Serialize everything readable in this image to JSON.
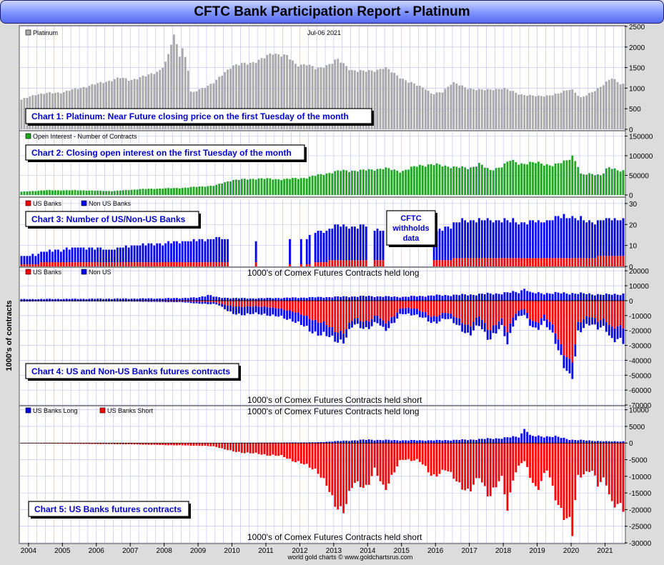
{
  "report": {
    "title": "CFTC Bank Participation Report - Platinum",
    "y_axis_title": "1000's of contracts",
    "footer": "world gold charts © www.goldchartsrus.com",
    "x_labels": [
      "2004",
      "2005",
      "2006",
      "2007",
      "2008",
      "2009",
      "2010",
      "2011",
      "2012",
      "2013",
      "2014",
      "2015",
      "2016",
      "2017",
      "2018",
      "2019",
      "2020",
      "2021"
    ],
    "colors": {
      "grey": "#a9a9a9",
      "green": "#1fa51f",
      "red": "#ff0000",
      "blue": "#0000ee",
      "grid": "#b9b9f3",
      "box_text": "#0000cc"
    }
  },
  "chart_data": [
    {
      "id": "chart1",
      "type": "bar",
      "legend": [
        "Platinum"
      ],
      "date": "Jul-06  2021",
      "box_label": "Chart 1: Platinum: Near Future closing price on the first Tuesday of the month",
      "ylim": [
        0,
        2500
      ],
      "yticks": [
        "2500",
        "2000",
        "1500",
        "1000",
        "500",
        "0"
      ],
      "anchors": [
        [
          2003.75,
          700
        ],
        [
          2004.2,
          850
        ],
        [
          2005.0,
          900
        ],
        [
          2006.0,
          1100
        ],
        [
          2006.7,
          1250
        ],
        [
          2007.0,
          1200
        ],
        [
          2007.5,
          1300
        ],
        [
          2007.9,
          1450
        ],
        [
          2008.1,
          1700
        ],
        [
          2008.2,
          2050
        ],
        [
          2008.3,
          2300
        ],
        [
          2008.45,
          1800
        ],
        [
          2008.55,
          2000
        ],
        [
          2008.7,
          1500
        ],
        [
          2008.8,
          850
        ],
        [
          2009.0,
          950
        ],
        [
          2009.5,
          1150
        ],
        [
          2010.0,
          1550
        ],
        [
          2010.5,
          1600
        ],
        [
          2011.0,
          1750
        ],
        [
          2011.2,
          1850
        ],
        [
          2011.6,
          1800
        ],
        [
          2011.9,
          1550
        ],
        [
          2012.2,
          1600
        ],
        [
          2012.5,
          1450
        ],
        [
          2012.9,
          1600
        ],
        [
          2013.1,
          1700
        ],
        [
          2013.5,
          1450
        ],
        [
          2013.9,
          1400
        ],
        [
          2014.3,
          1450
        ],
        [
          2014.5,
          1500
        ],
        [
          2014.9,
          1300
        ],
        [
          2015.2,
          1150
        ],
        [
          2015.7,
          1000
        ],
        [
          2015.9,
          850
        ],
        [
          2016.2,
          900
        ],
        [
          2016.5,
          1150
        ],
        [
          2016.9,
          1000
        ],
        [
          2017.5,
          950
        ],
        [
          2018.0,
          1000
        ],
        [
          2018.5,
          850
        ],
        [
          2019.0,
          800
        ],
        [
          2019.6,
          850
        ],
        [
          2020.0,
          1000
        ],
        [
          2020.3,
          750
        ],
        [
          2020.6,
          900
        ],
        [
          2021.0,
          1100
        ],
        [
          2021.2,
          1250
        ],
        [
          2021.4,
          1150
        ],
        [
          2021.5,
          1100
        ]
      ]
    },
    {
      "id": "chart2",
      "type": "bar",
      "legend": [
        "Open Interest - Number of Contracts"
      ],
      "box_label": "Chart 2: Closing open interest on the first Tuesday of the month",
      "ylim": [
        0,
        160000
      ],
      "yticks": [
        "150000",
        "100000",
        "50000",
        "0"
      ],
      "anchors": [
        [
          2003.75,
          8000
        ],
        [
          2004.5,
          12000
        ],
        [
          2005.5,
          12000
        ],
        [
          2006.5,
          10000
        ],
        [
          2007.3,
          15000
        ],
        [
          2008.5,
          18000
        ],
        [
          2009.5,
          24000
        ],
        [
          2010.0,
          38000
        ],
        [
          2010.8,
          42000
        ],
        [
          2011.5,
          40000
        ],
        [
          2012.2,
          44000
        ],
        [
          2012.5,
          50000
        ],
        [
          2013.2,
          62000
        ],
        [
          2013.8,
          62000
        ],
        [
          2014.5,
          68000
        ],
        [
          2015.0,
          60000
        ],
        [
          2015.5,
          75000
        ],
        [
          2015.9,
          78000
        ],
        [
          2016.5,
          72000
        ],
        [
          2017.0,
          68000
        ],
        [
          2017.3,
          80000
        ],
        [
          2017.6,
          62000
        ],
        [
          2018.0,
          75000
        ],
        [
          2018.2,
          88000
        ],
        [
          2018.5,
          80000
        ],
        [
          2019.0,
          82000
        ],
        [
          2019.5,
          75000
        ],
        [
          2019.8,
          85000
        ],
        [
          2020.05,
          100000
        ],
        [
          2020.2,
          75000
        ],
        [
          2020.3,
          50000
        ],
        [
          2020.6,
          55000
        ],
        [
          2020.9,
          50000
        ],
        [
          2021.1,
          70000
        ],
        [
          2021.5,
          62000
        ]
      ]
    },
    {
      "id": "chart3",
      "type": "bar",
      "legend": [
        "US Banks",
        "Non US Banks"
      ],
      "box_label": "Chart 3: Number of US/Non-US Banks",
      "annotation": "CFTC withholds data",
      "ylim": [
        0,
        32
      ],
      "yticks": [
        "30",
        "20",
        "10",
        "0"
      ],
      "us_anchors": [
        [
          2003.75,
          1
        ],
        [
          2005.0,
          2
        ],
        [
          2007.0,
          2
        ],
        [
          2009.0,
          2
        ],
        [
          2009.9,
          2
        ],
        [
          2012.2,
          1
        ],
        [
          2013.0,
          3
        ],
        [
          2015.0,
          3
        ],
        [
          2016.0,
          3
        ],
        [
          2017.0,
          4
        ],
        [
          2019.0,
          4
        ],
        [
          2020.0,
          4
        ],
        [
          2021.5,
          5
        ]
      ],
      "nonus_anchors": [
        [
          2003.75,
          4
        ],
        [
          2004.5,
          5
        ],
        [
          2005.5,
          7
        ],
        [
          2006.5,
          6
        ],
        [
          2007.0,
          8
        ],
        [
          2008.0,
          9
        ],
        [
          2009.5,
          11
        ],
        [
          2009.9,
          11
        ],
        [
          2012.0,
          12
        ],
        [
          2012.5,
          14
        ],
        [
          2013.0,
          16
        ],
        [
          2014.0,
          16
        ],
        [
          2014.5,
          14
        ],
        [
          2015.9,
          12
        ],
        [
          2016.3,
          16
        ],
        [
          2017.0,
          18
        ],
        [
          2018.0,
          18
        ],
        [
          2018.5,
          17
        ],
        [
          2019.0,
          17
        ],
        [
          2019.5,
          19
        ],
        [
          2020.0,
          20
        ],
        [
          2020.5,
          17
        ],
        [
          2021.0,
          17
        ],
        [
          2021.5,
          18
        ]
      ],
      "gaps": [
        [
          2009.95,
          2010.7
        ],
        [
          2010.75,
          2011.68
        ],
        [
          2011.72,
          2012.0
        ],
        [
          2012.05,
          2012.18
        ],
        [
          2012.35,
          2012.4
        ],
        [
          2014.0,
          2014.2
        ],
        [
          2014.5,
          2015.9
        ]
      ]
    },
    {
      "id": "chart4",
      "type": "bar",
      "legend": [
        "US Banks",
        "Non US"
      ],
      "label_top": "1000's of Comex Futures Contracts held long",
      "label_bottom": "1000's of Comex Futures Contracts held short",
      "box_label": "Chart 4: US and Non-US Banks futures contracts",
      "ylim": [
        -70000,
        22000
      ],
      "yticks": [
        "20000",
        "10000",
        "0",
        "-10000",
        "-20000",
        "-30000",
        "-40000",
        "-50000",
        "-60000",
        "-70000"
      ],
      "red_anchors": [
        [
          2003.75,
          -300
        ],
        [
          2007.0,
          -300
        ],
        [
          2008.5,
          -500
        ],
        [
          2009.5,
          -1000
        ],
        [
          2010.0,
          -4000
        ],
        [
          2011.0,
          -4000
        ],
        [
          2011.8,
          -7000
        ],
        [
          2012.3,
          -12000
        ],
        [
          2012.7,
          -15000
        ],
        [
          2013.0,
          -20000
        ],
        [
          2013.3,
          -21000
        ],
        [
          2013.6,
          -12000
        ],
        [
          2014.0,
          -14000
        ],
        [
          2014.3,
          -10000
        ],
        [
          2014.5,
          -15000
        ],
        [
          2014.8,
          -10000
        ],
        [
          2015.0,
          -5000
        ],
        [
          2015.4,
          -5000
        ],
        [
          2015.9,
          -11000
        ],
        [
          2016.3,
          -8000
        ],
        [
          2016.7,
          -12000
        ],
        [
          2017.0,
          -18000
        ],
        [
          2017.3,
          -10000
        ],
        [
          2017.6,
          -20000
        ],
        [
          2018.0,
          -12000
        ],
        [
          2018.1,
          -22000
        ],
        [
          2018.3,
          -10000
        ],
        [
          2018.6,
          -5000
        ],
        [
          2018.8,
          -12000
        ],
        [
          2019.0,
          -15000
        ],
        [
          2019.2,
          -10000
        ],
        [
          2019.5,
          -18000
        ],
        [
          2019.8,
          -35000
        ],
        [
          2020.0,
          -45000
        ],
        [
          2020.1,
          -35000
        ],
        [
          2020.2,
          -15000
        ],
        [
          2020.5,
          -10000
        ],
        [
          2020.8,
          -14000
        ],
        [
          2021.0,
          -12000
        ],
        [
          2021.2,
          -18000
        ],
        [
          2021.5,
          -18000
        ]
      ],
      "blue_anchors": [
        [
          2003.75,
          -300
        ],
        [
          2005.0,
          -200
        ],
        [
          2007.0,
          -300
        ],
        [
          2008.5,
          -500
        ],
        [
          2009.3,
          -1500
        ],
        [
          2009.6,
          -1000
        ],
        [
          2010.0,
          -5000
        ],
        [
          2011.0,
          -5000
        ],
        [
          2011.8,
          -6000
        ],
        [
          2012.3,
          -8000
        ],
        [
          2012.7,
          -8000
        ],
        [
          2013.0,
          -6000
        ],
        [
          2013.3,
          -6000
        ],
        [
          2013.6,
          -4000
        ],
        [
          2014.3,
          -5000
        ],
        [
          2014.8,
          -4000
        ],
        [
          2015.9,
          -4000
        ],
        [
          2016.5,
          -4000
        ],
        [
          2017.0,
          -6000
        ],
        [
          2017.6,
          -6000
        ],
        [
          2018.0,
          -5000
        ],
        [
          2018.1,
          -8000
        ],
        [
          2018.4,
          -4000
        ],
        [
          2019.0,
          -4000
        ],
        [
          2019.5,
          -6000
        ],
        [
          2019.8,
          -8000
        ],
        [
          2020.0,
          -12000
        ],
        [
          2020.2,
          -6000
        ],
        [
          2020.6,
          -5000
        ],
        [
          2021.0,
          -5000
        ],
        [
          2021.2,
          -8000
        ],
        [
          2021.5,
          -10000
        ]
      ],
      "long_anchors": [
        [
          2003.75,
          1000
        ],
        [
          2008.0,
          1500
        ],
        [
          2009.0,
          2000
        ],
        [
          2009.3,
          4000
        ],
        [
          2009.6,
          2000
        ],
        [
          2010.5,
          1500
        ],
        [
          2012.0,
          2000
        ],
        [
          2013.0,
          2500
        ],
        [
          2014.0,
          3000
        ],
        [
          2015.0,
          2500
        ],
        [
          2016.0,
          3500
        ],
        [
          2017.0,
          4000
        ],
        [
          2018.0,
          5000
        ],
        [
          2018.5,
          6000
        ],
        [
          2018.65,
          9000
        ],
        [
          2018.8,
          5000
        ],
        [
          2019.5,
          5000
        ],
        [
          2020.0,
          5000
        ],
        [
          2021.0,
          4000
        ],
        [
          2021.5,
          4500
        ]
      ]
    },
    {
      "id": "chart5",
      "type": "bar",
      "legend": [
        "US Banks Long",
        "US Banks Short"
      ],
      "label_top": "1000's of Comex Futures Contracts held long",
      "label_bottom": "1000's of Comex Futures Contracts held short",
      "box_label": "Chart 5: US Banks futures contracts",
      "ylim": [
        -30000,
        11000
      ],
      "yticks": [
        "10000",
        "5000",
        "0",
        "-5000",
        "-10000",
        "-15000",
        "-20000",
        "-25000",
        "-30000"
      ],
      "short_anchors": [
        [
          2003.75,
          -100
        ],
        [
          2005.0,
          -200
        ],
        [
          2007.0,
          -400
        ],
        [
          2008.0,
          -600
        ],
        [
          2009.0,
          -800
        ],
        [
          2009.5,
          -1000
        ],
        [
          2010.0,
          -2500
        ],
        [
          2011.0,
          -3500
        ],
        [
          2011.5,
          -4000
        ],
        [
          2012.0,
          -6000
        ],
        [
          2012.5,
          -8000
        ],
        [
          2012.8,
          -13000
        ],
        [
          2013.0,
          -18000
        ],
        [
          2013.3,
          -20000
        ],
        [
          2013.6,
          -12000
        ],
        [
          2014.0,
          -13000
        ],
        [
          2014.2,
          -8000
        ],
        [
          2014.5,
          -14000
        ],
        [
          2014.7,
          -10000
        ],
        [
          2015.0,
          -5000
        ],
        [
          2015.5,
          -5000
        ],
        [
          2015.9,
          -10000
        ],
        [
          2016.3,
          -8000
        ],
        [
          2016.7,
          -12000
        ],
        [
          2017.0,
          -15000
        ],
        [
          2017.3,
          -10000
        ],
        [
          2017.6,
          -16000
        ],
        [
          2018.0,
          -10000
        ],
        [
          2018.1,
          -21000
        ],
        [
          2018.3,
          -10000
        ],
        [
          2018.6,
          -5000
        ],
        [
          2018.8,
          -10000
        ],
        [
          2019.0,
          -14000
        ],
        [
          2019.3,
          -8000
        ],
        [
          2019.5,
          -15000
        ],
        [
          2019.8,
          -22000
        ],
        [
          2020.0,
          -25000
        ],
        [
          2020.05,
          -28000
        ],
        [
          2020.1,
          -20000
        ],
        [
          2020.2,
          -10000
        ],
        [
          2020.6,
          -8000
        ],
        [
          2020.8,
          -13000
        ],
        [
          2021.0,
          -10000
        ],
        [
          2021.2,
          -18000
        ],
        [
          2021.5,
          -20000
        ]
      ],
      "long_anchors": [
        [
          2003.75,
          0
        ],
        [
          2009.0,
          0
        ],
        [
          2012.5,
          200
        ],
        [
          2013.0,
          500
        ],
        [
          2014.0,
          1000
        ],
        [
          2015.0,
          800
        ],
        [
          2016.0,
          800
        ],
        [
          2017.0,
          1000
        ],
        [
          2018.0,
          1500
        ],
        [
          2018.5,
          2000
        ],
        [
          2018.65,
          5000
        ],
        [
          2018.8,
          2000
        ],
        [
          2019.5,
          2000
        ],
        [
          2020.0,
          1000
        ],
        [
          2021.0,
          500
        ],
        [
          2021.5,
          500
        ]
      ]
    }
  ]
}
